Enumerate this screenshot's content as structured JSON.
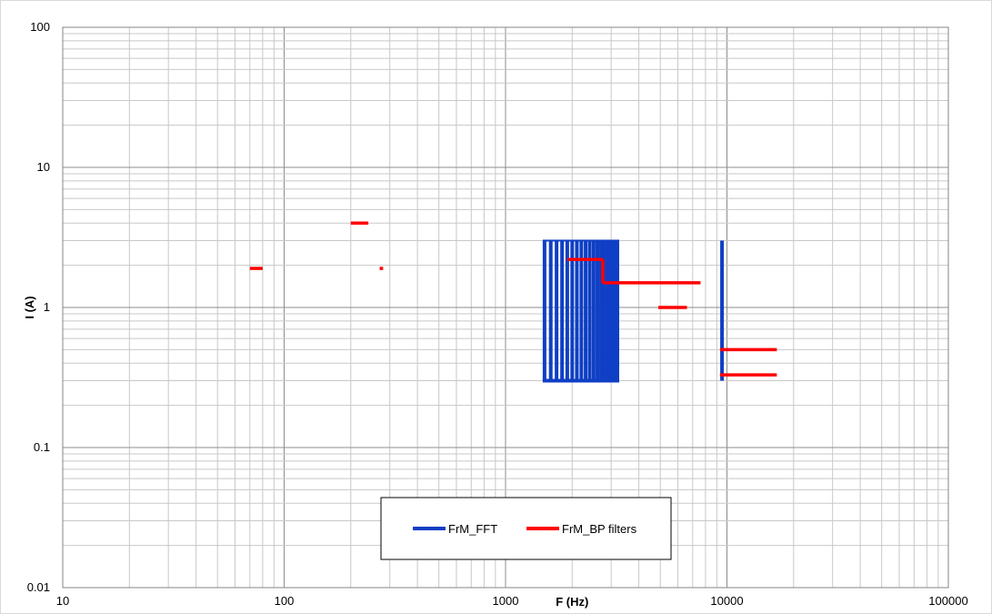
{
  "chart_data": {
    "type": "line",
    "xscale": "log",
    "yscale": "log",
    "xlim": [
      10,
      100000
    ],
    "ylim": [
      0.01,
      100
    ],
    "xlabel": "F (Hz)",
    "ylabel": "I (A)",
    "grid": true,
    "legend_position": "bottom-center",
    "x_tick_labels": [
      "10",
      "100",
      "1000",
      "10000",
      "100000"
    ],
    "y_tick_labels": [
      "0.01",
      "0.1",
      "1",
      "10",
      "100"
    ],
    "series": [
      {
        "name": "FrM_FFT",
        "color": "#0f3fc4",
        "style": "vertical-bars",
        "y_low": 0.3,
        "y_high": 3,
        "x_values": [
          1500,
          1600,
          1700,
          1800,
          1900,
          2000,
          2100,
          2200,
          2300,
          2400,
          2500,
          2600,
          2700,
          2800,
          2900,
          3000,
          3100,
          3200,
          9500
        ],
        "partial_bars": [
          {
            "x": 9500,
            "y_low": 0.3,
            "y_high": 3
          }
        ]
      },
      {
        "name": "FrM_BP filters",
        "color": "#ff0000",
        "style": "horizontal-segments",
        "segments": [
          {
            "x0": 70,
            "x1": 80,
            "y": 1.9
          },
          {
            "x0": 200,
            "x1": 240,
            "y": 4.0
          },
          {
            "x0": 270,
            "x1": 280,
            "y": 1.9
          },
          {
            "x0": 1900,
            "x1": 2750,
            "y": 2.2,
            "drop_to": 1.5
          },
          {
            "x0": 2750,
            "x1": 7600,
            "y": 1.5
          },
          {
            "x0": 4900,
            "x1": 6600,
            "y": 1.0
          },
          {
            "x0": 9300,
            "x1": 16800,
            "y": 0.5
          },
          {
            "x0": 9300,
            "x1": 16800,
            "y": 0.33
          }
        ]
      }
    ]
  }
}
